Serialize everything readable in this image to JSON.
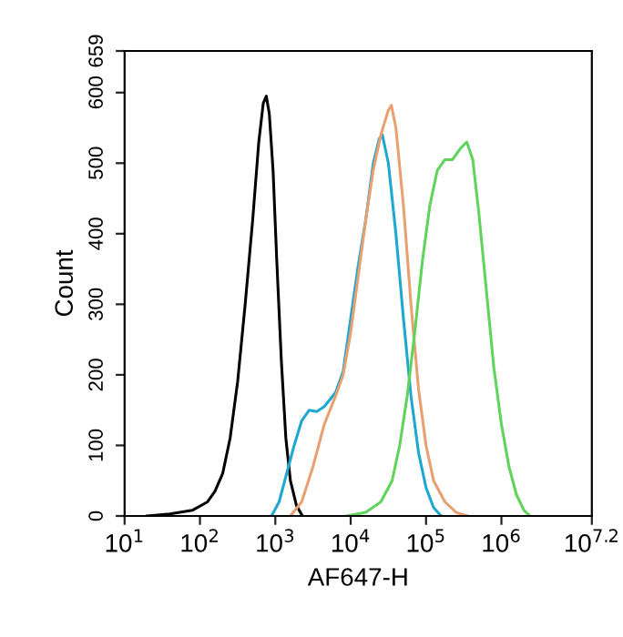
{
  "chart_data": {
    "type": "line",
    "xlabel": "AF647-H",
    "ylabel": "Count",
    "log": "x",
    "xlim": [
      10,
      15848932
    ],
    "xticks": [
      {
        "value": 10,
        "label": "10$^{1}$"
      },
      {
        "value": 100,
        "label": "10$^{2}$"
      },
      {
        "value": 1000,
        "label": "10$^{3}$"
      },
      {
        "value": 10000,
        "label": "10$^{4}$"
      },
      {
        "value": 100000,
        "label": "10$^{5}$"
      },
      {
        "value": 1000000,
        "label": "10$^{6}$"
      },
      {
        "value": 15848932,
        "label": "10$^{7.2}$"
      }
    ],
    "ylim": [
      0,
      659
    ],
    "yticks": [
      0,
      100,
      200,
      300,
      400,
      500,
      600,
      659
    ],
    "grid": false,
    "legend": false,
    "marker": "none",
    "line_style": "solid",
    "series": [
      {
        "color": "#000000",
        "x": [
          20,
          40,
          79,
          126,
          158,
          200,
          251,
          316,
          398,
          501,
          603,
          692,
          759,
          832,
          933,
          1047,
          1202,
          1380,
          1585,
          1905,
          2291
        ],
        "values": [
          0,
          3,
          8,
          20,
          35,
          60,
          110,
          190,
          300,
          420,
          530,
          585,
          595,
          570,
          490,
          360,
          220,
          110,
          50,
          15,
          0
        ]
      },
      {
        "color": "#1ea7d0",
        "x": [
          891,
          1122,
          1413,
          1778,
          2239,
          2818,
          3548,
          4467,
          6310,
          7943,
          10000,
          12589,
          15849,
          19953,
          23988,
          26303,
          31623,
          39811,
          50119,
          63096,
          79433,
          100000,
          125893,
          158489
        ],
        "values": [
          0,
          20,
          60,
          100,
          135,
          150,
          148,
          155,
          175,
          205,
          280,
          355,
          420,
          500,
          535,
          540,
          500,
          400,
          280,
          170,
          90,
          40,
          12,
          0
        ]
      },
      {
        "color": "#e8a070",
        "x": [
          1585,
          2239,
          3162,
          4467,
          6310,
          7943,
          10000,
          12589,
          15849,
          19953,
          25119,
          31623,
          34674,
          39811,
          50119,
          63096,
          79433,
          100000,
          125893,
          177828,
          251189,
          354813
        ],
        "values": [
          0,
          20,
          70,
          130,
          170,
          200,
          260,
          340,
          420,
          490,
          540,
          575,
          582,
          550,
          440,
          300,
          180,
          100,
          50,
          20,
          5,
          0
        ]
      },
      {
        "color": "#5fd35a",
        "x": [
          8913,
          15849,
          25119,
          35481,
          44668,
          56234,
          70795,
          89125,
          112202,
          141254,
          177828,
          223872,
          281838,
          346737,
          416869,
          501187,
          630957,
          794328,
          1000000,
          1258925,
          1584893,
          1995262,
          2398833
        ],
        "values": [
          0,
          5,
          20,
          50,
          100,
          170,
          260,
          360,
          440,
          490,
          505,
          505,
          520,
          530,
          505,
          430,
          320,
          210,
          130,
          70,
          30,
          8,
          0
        ]
      }
    ]
  }
}
